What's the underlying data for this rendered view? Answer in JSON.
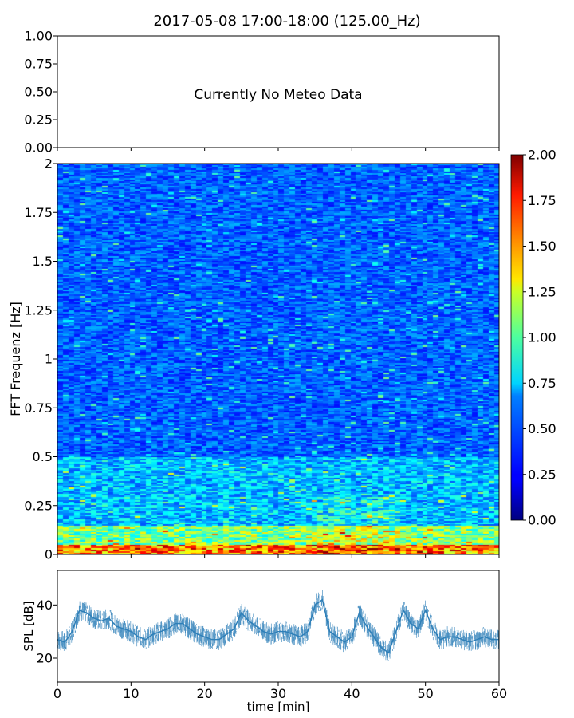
{
  "chart_data": [
    {
      "type": "text",
      "title": "2017-05-08 17:00-18:00 (125.00_Hz)",
      "annotation": "Currently No Meteo Data",
      "ylim": [
        0,
        1
      ],
      "yticks": [
        "0.00",
        "0.25",
        "0.50",
        "0.75",
        "1.00"
      ],
      "x_ticks_labeled": false
    },
    {
      "type": "heatmap",
      "ylabel": "FFT Frequenz [Hz]",
      "ylim": [
        0,
        2
      ],
      "yticks": [
        "0",
        "0.25",
        "0.5",
        "0.75",
        "1",
        "1.25",
        "1.5",
        "1.75",
        "2"
      ],
      "xlim": [
        0,
        60
      ],
      "colormap": "jet",
      "colorbar": {
        "range": [
          0,
          2
        ],
        "ticks": [
          "0.00",
          "0.25",
          "0.50",
          "0.75",
          "1.00",
          "1.25",
          "1.50",
          "1.75",
          "2.00"
        ]
      },
      "pattern": "intensity highest below 0.1 Hz (values up to ~2), moderate 0.1–0.5 Hz, low (~0.1–0.3) above 0.5 Hz; brighter low-frequency bands near 35–45 min"
    },
    {
      "type": "line",
      "xlabel": "time [min]",
      "ylabel": "SPL [dB]",
      "xlim": [
        0,
        60
      ],
      "ylim": [
        11,
        53
      ],
      "xticks": [
        "0",
        "10",
        "20",
        "30",
        "40",
        "50",
        "60"
      ],
      "yticks": [
        "20",
        "40"
      ],
      "color": "#2e7fb8",
      "x": [
        0,
        1,
        2,
        3,
        4,
        5,
        6,
        7,
        8,
        9,
        10,
        11,
        12,
        13,
        14,
        15,
        16,
        17,
        18,
        19,
        20,
        21,
        22,
        23,
        24,
        25,
        26,
        27,
        28,
        29,
        30,
        31,
        32,
        33,
        34,
        35,
        36,
        37,
        38,
        39,
        40,
        41,
        42,
        43,
        44,
        45,
        46,
        47,
        48,
        49,
        50,
        51,
        52,
        53,
        54,
        55,
        56,
        57,
        58,
        59,
        60
      ],
      "y": [
        27,
        26,
        30,
        38,
        37,
        35,
        34,
        35,
        32,
        31,
        30,
        28,
        27,
        29,
        30,
        31,
        33,
        33,
        31,
        29,
        28,
        27,
        27,
        29,
        31,
        37,
        34,
        32,
        30,
        29,
        30,
        30,
        29,
        28,
        30,
        40,
        42,
        30,
        28,
        26,
        28,
        37,
        32,
        28,
        24,
        22,
        30,
        38,
        33,
        31,
        38,
        31,
        27,
        28,
        28,
        27,
        26,
        27,
        28,
        27,
        27
      ],
      "band": 4
    }
  ]
}
